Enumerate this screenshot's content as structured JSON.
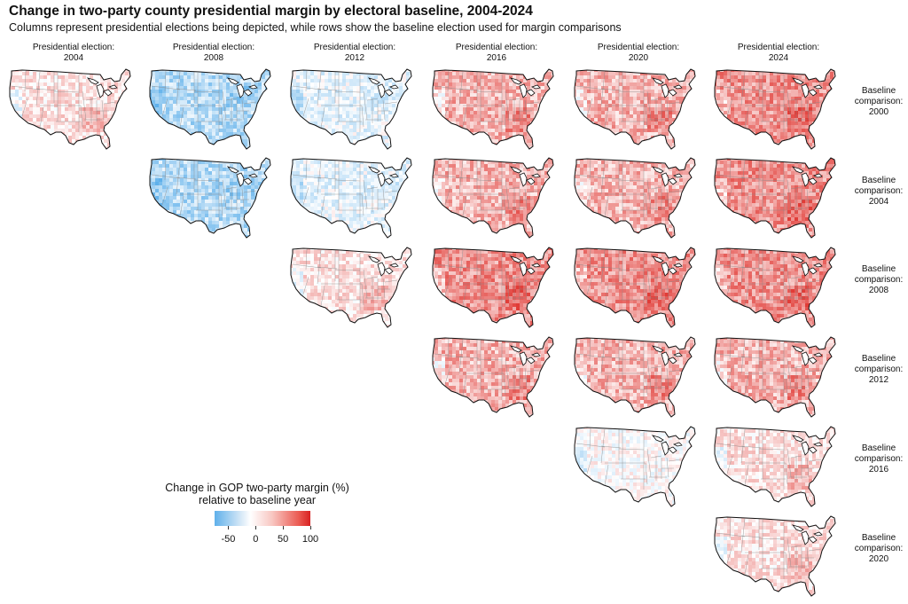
{
  "title": "Change in two-party county presidential margin by electoral baseline, 2004-2024",
  "subtitle": "Columns represent presidential elections being depicted, while rows show the baseline election used for margin comparisons",
  "columns": [
    {
      "label1": "Presidential election:",
      "label2": "2004"
    },
    {
      "label1": "Presidential election:",
      "label2": "2008"
    },
    {
      "label1": "Presidential election:",
      "label2": "2012"
    },
    {
      "label1": "Presidential election:",
      "label2": "2016"
    },
    {
      "label1": "Presidential election:",
      "label2": "2020"
    },
    {
      "label1": "Presidential election:",
      "label2": "2024"
    }
  ],
  "rows": [
    {
      "label1": "Baseline",
      "label2": "comparison:",
      "label3": "2000"
    },
    {
      "label1": "Baseline",
      "label2": "comparison:",
      "label3": "2004"
    },
    {
      "label1": "Baseline",
      "label2": "comparison:",
      "label3": "2008"
    },
    {
      "label1": "Baseline",
      "label2": "comparison:",
      "label3": "2012"
    },
    {
      "label1": "Baseline",
      "label2": "comparison:",
      "label3": "2016"
    },
    {
      "label1": "Baseline",
      "label2": "comparison:",
      "label3": "2020"
    }
  ],
  "panels": [
    {
      "election": "2004",
      "baseline": "2000",
      "tone": "slight-red"
    },
    {
      "election": "2008",
      "baseline": "2000",
      "tone": "blue"
    },
    {
      "election": "2012",
      "baseline": "2000",
      "tone": "slight-blue"
    },
    {
      "election": "2016",
      "baseline": "2000",
      "tone": "red"
    },
    {
      "election": "2020",
      "baseline": "2000",
      "tone": "red"
    },
    {
      "election": "2024",
      "baseline": "2000",
      "tone": "strong-red"
    },
    {
      "election": "2008",
      "baseline": "2004",
      "tone": "blue"
    },
    {
      "election": "2012",
      "baseline": "2004",
      "tone": "slight-blue"
    },
    {
      "election": "2016",
      "baseline": "2004",
      "tone": "red"
    },
    {
      "election": "2020",
      "baseline": "2004",
      "tone": "red"
    },
    {
      "election": "2024",
      "baseline": "2004",
      "tone": "strong-red"
    },
    {
      "election": "2012",
      "baseline": "2008",
      "tone": "slight-red"
    },
    {
      "election": "2016",
      "baseline": "2008",
      "tone": "strong-red"
    },
    {
      "election": "2020",
      "baseline": "2008",
      "tone": "strong-red"
    },
    {
      "election": "2024",
      "baseline": "2008",
      "tone": "strong-red"
    },
    {
      "election": "2016",
      "baseline": "2012",
      "tone": "red"
    },
    {
      "election": "2020",
      "baseline": "2012",
      "tone": "red"
    },
    {
      "election": "2024",
      "baseline": "2012",
      "tone": "red"
    },
    {
      "election": "2020",
      "baseline": "2016",
      "tone": "neutral"
    },
    {
      "election": "2024",
      "baseline": "2016",
      "tone": "slight-red"
    },
    {
      "election": "2024",
      "baseline": "2020",
      "tone": "slight-red"
    }
  ],
  "legend": {
    "title1": "Change in GOP two-party margin (%)",
    "title2": "relative to baseline year",
    "ticks": [
      -50,
      0,
      50,
      100
    ],
    "range": [
      -75,
      100
    ],
    "low_color": "#5fb0ea",
    "mid_color": "#ffffff",
    "high_color": "#d82222"
  }
}
